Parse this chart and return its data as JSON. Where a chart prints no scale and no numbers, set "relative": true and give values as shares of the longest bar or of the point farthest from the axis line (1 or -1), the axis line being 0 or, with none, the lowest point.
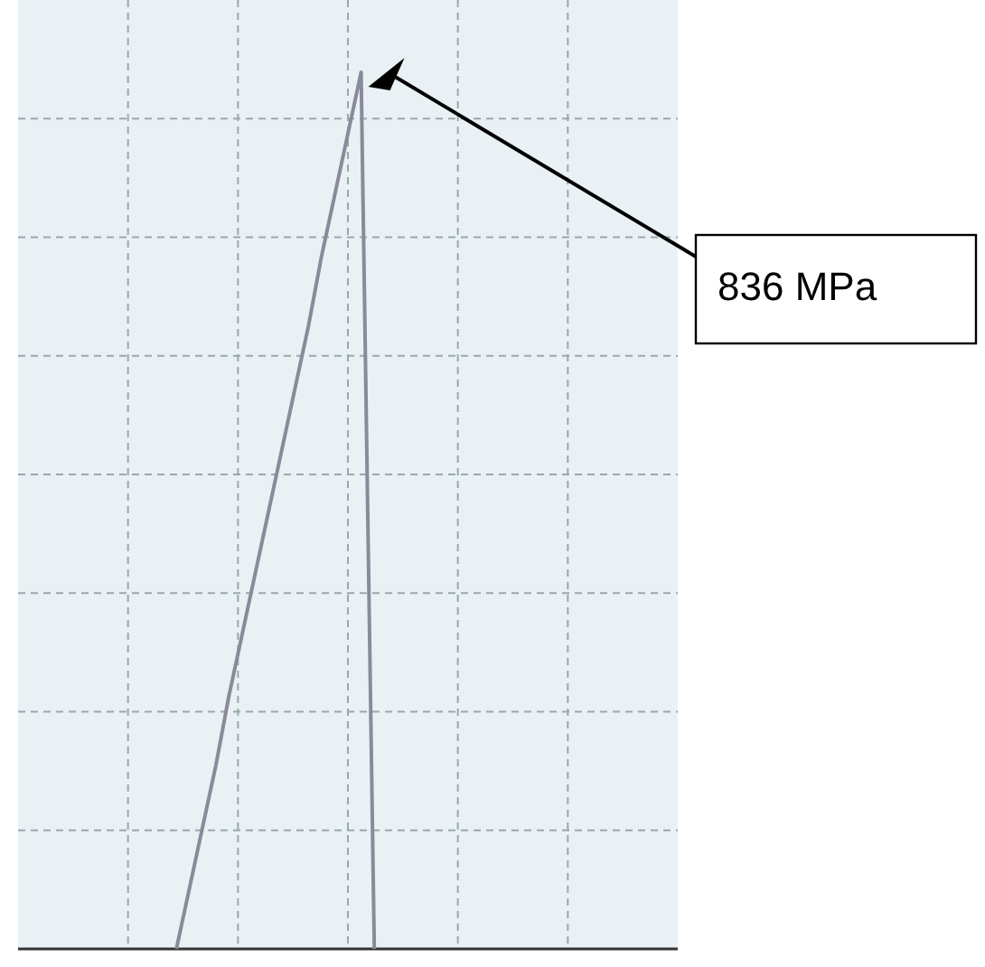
{
  "chart_data": {
    "type": "line",
    "relative": true,
    "grid": true,
    "categories": [
      null,
      null,
      null,
      null,
      null,
      null,
      null,
      null,
      null,
      null,
      null,
      null,
      null,
      null,
      null,
      null,
      null,
      null,
      null,
      null,
      null,
      null,
      null,
      null,
      null,
      null,
      null,
      null,
      null,
      null,
      null,
      null,
      null,
      null,
      null,
      null,
      null,
      null,
      null,
      null,
      null,
      null,
      null,
      null,
      null,
      null,
      null,
      null,
      null,
      null,
      null
    ],
    "series": [
      {
        "color": "#8a8a9a",
        "values": [
          null,
          null,
          null,
          null,
          null,
          null,
          null,
          null,
          null,
          null,
          null,
          null,
          0,
          0.07,
          0.14,
          0.21,
          0.29,
          0.36,
          0.43,
          0.5,
          0.57,
          0.64,
          0.71,
          0.79,
          0.86,
          0.93,
          1,
          0,
          null,
          null,
          null,
          null,
          null,
          null,
          null,
          null,
          null,
          null,
          null,
          null,
          null,
          null,
          null,
          null,
          null,
          null,
          null,
          null,
          null,
          null,
          null
        ]
      }
    ],
    "annotations": [
      "836 MPa"
    ]
  }
}
